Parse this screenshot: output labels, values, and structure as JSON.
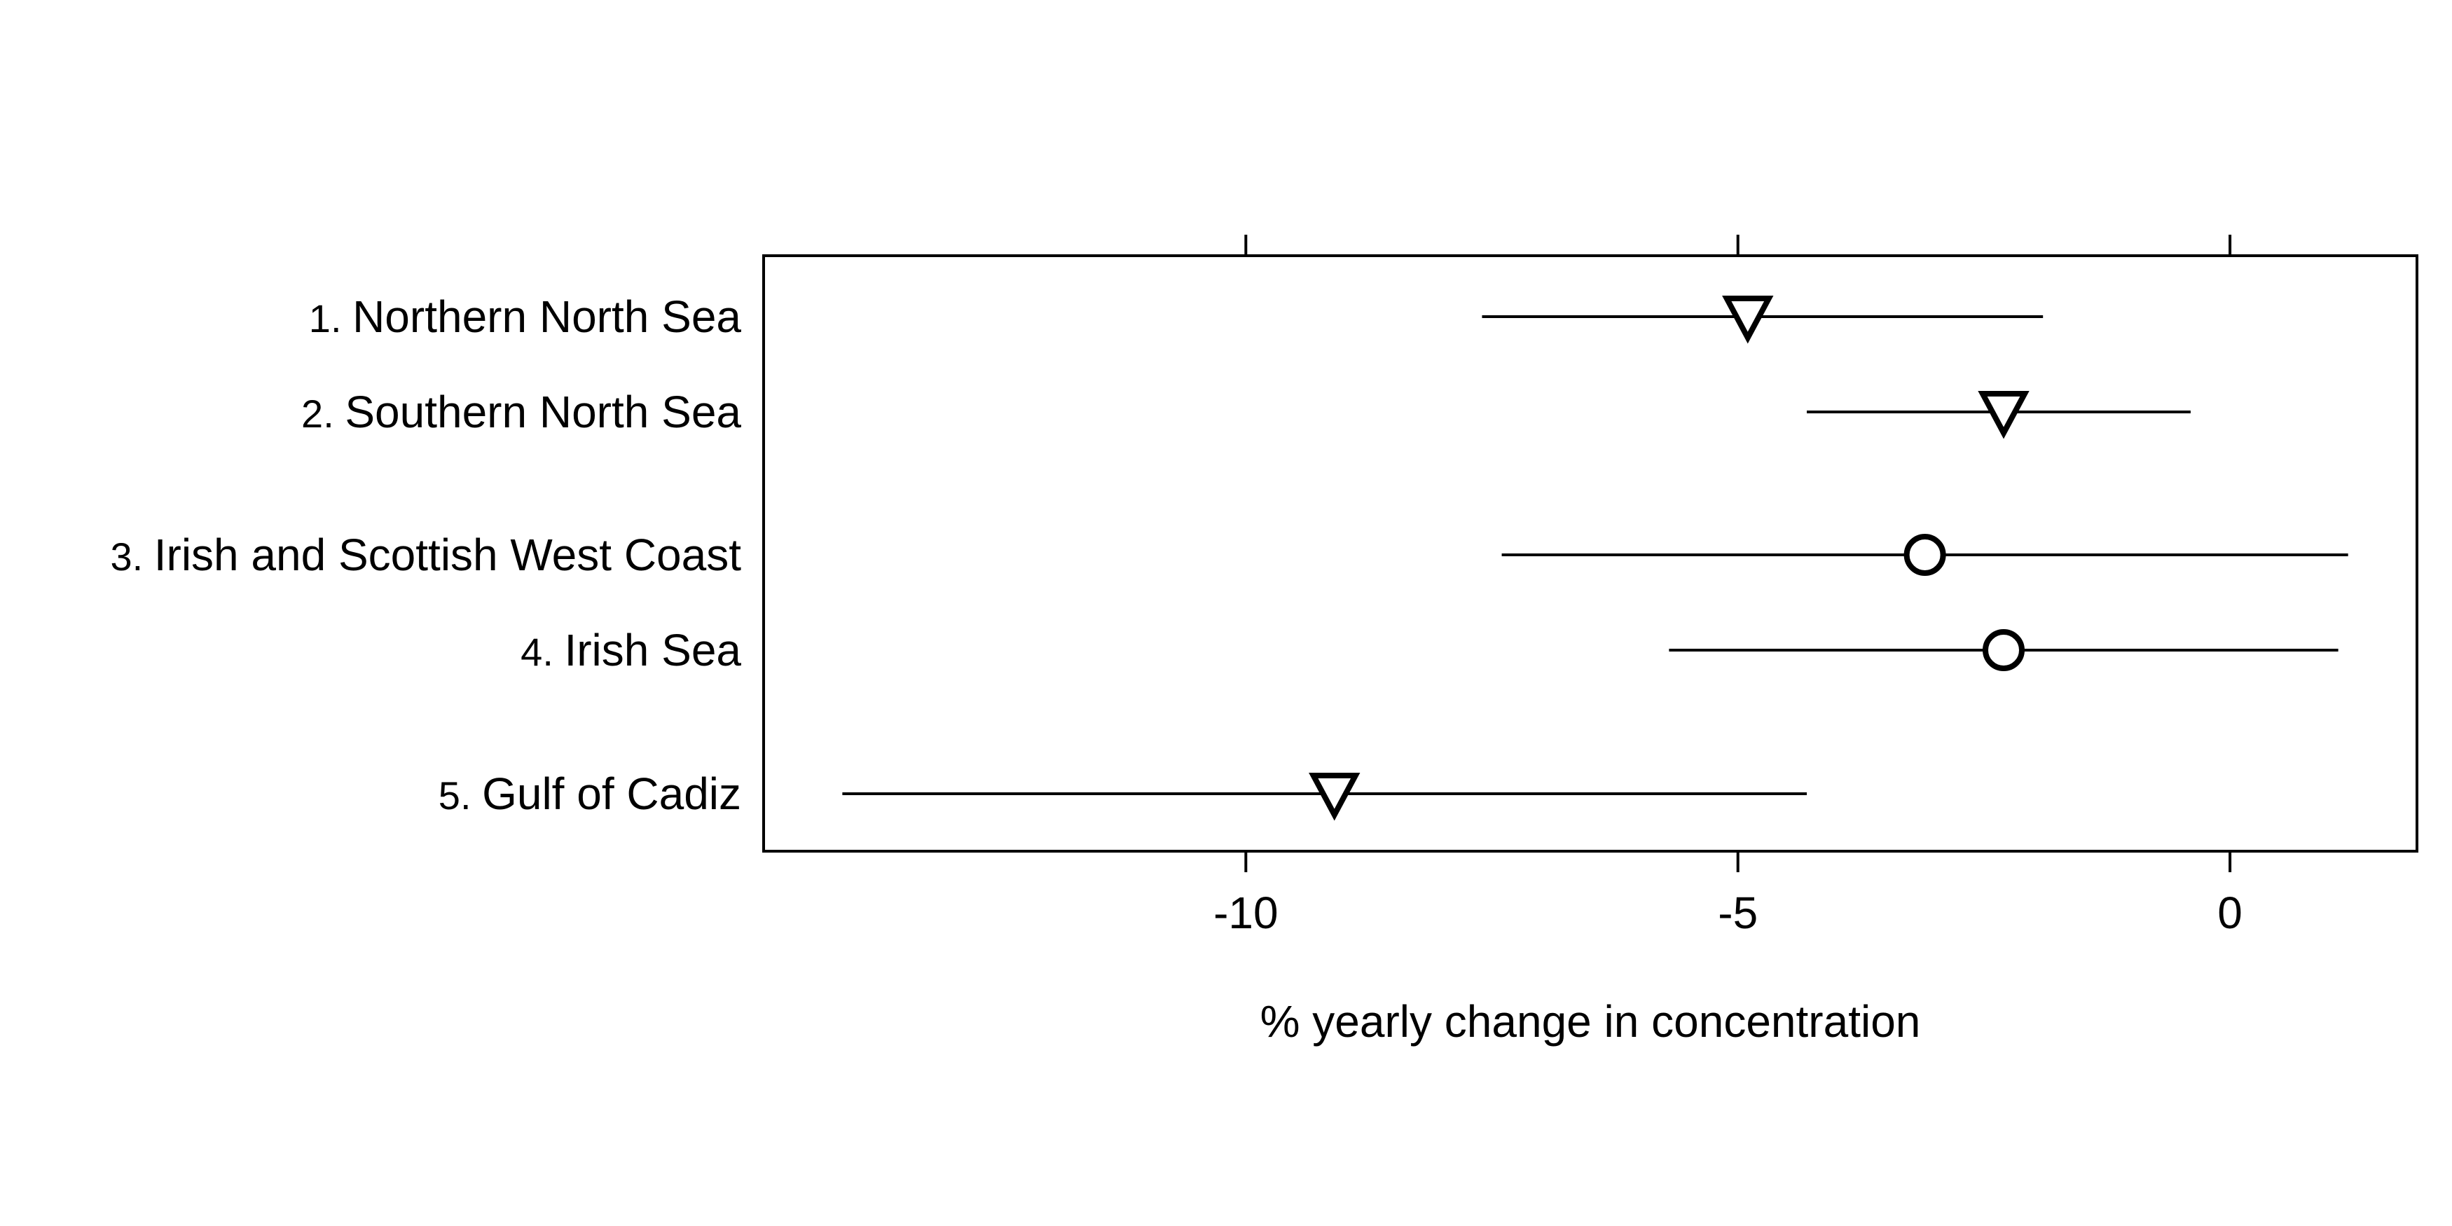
{
  "chart_data": {
    "type": "dot-and-whisker",
    "xlabel": "% yearly change in concentration",
    "xlim": [
      -14.9,
      1.9
    ],
    "xticks": [
      {
        "value": -10,
        "label": "-10"
      },
      {
        "value": -5,
        "label": "-5"
      },
      {
        "value": 0,
        "label": "0"
      }
    ],
    "grid": false,
    "categories": [
      {
        "number": "1.",
        "name": "Northern North Sea",
        "estimate": -4.9,
        "lower": -7.6,
        "upper": -1.9,
        "marker": "triangle-down"
      },
      {
        "number": "2.",
        "name": "Southern North Sea",
        "estimate": -2.3,
        "lower": -4.3,
        "upper": -0.4,
        "marker": "triangle-down"
      },
      {
        "number": "3.",
        "name": "Irish and Scottish West Coast",
        "estimate": -3.1,
        "lower": -7.4,
        "upper": 1.2,
        "marker": "circle"
      },
      {
        "number": "4.",
        "name": "Irish Sea",
        "estimate": -2.3,
        "lower": -5.7,
        "upper": 1.1,
        "marker": "circle"
      },
      {
        "number": "5.",
        "name": "Gulf of Cadiz",
        "estimate": -9.1,
        "lower": -14.1,
        "upper": -4.3,
        "marker": "triangle-down"
      }
    ]
  }
}
